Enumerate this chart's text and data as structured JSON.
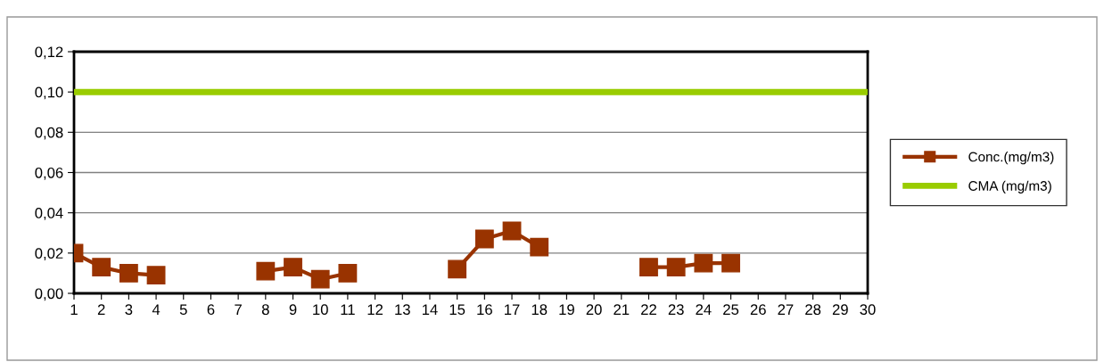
{
  "chart_data": {
    "type": "line",
    "categories": [
      "1",
      "2",
      "3",
      "4",
      "5",
      "6",
      "7",
      "8",
      "9",
      "10",
      "11",
      "12",
      "13",
      "14",
      "15",
      "16",
      "17",
      "18",
      "19",
      "20",
      "21",
      "22",
      "23",
      "24",
      "25",
      "26",
      "27",
      "28",
      "29",
      "30"
    ],
    "series": [
      {
        "name": "Conc.(mg/m3)",
        "color": "#993300",
        "marker": "square",
        "values": [
          0.02,
          0.013,
          0.01,
          0.009,
          null,
          null,
          null,
          0.011,
          0.013,
          0.007,
          0.01,
          null,
          null,
          null,
          0.012,
          0.027,
          0.031,
          0.023,
          null,
          null,
          null,
          0.013,
          0.013,
          0.015,
          0.015,
          null,
          null,
          null,
          null,
          null
        ]
      },
      {
        "name": "CMA (mg/m3)",
        "color": "#99cc00",
        "marker": "none",
        "values": [
          0.1,
          0.1,
          0.1,
          0.1,
          0.1,
          0.1,
          0.1,
          0.1,
          0.1,
          0.1,
          0.1,
          0.1,
          0.1,
          0.1,
          0.1,
          0.1,
          0.1,
          0.1,
          0.1,
          0.1,
          0.1,
          0.1,
          0.1,
          0.1,
          0.1,
          0.1,
          0.1,
          0.1,
          0.1,
          0.1
        ]
      }
    ],
    "ylim": [
      0,
      0.12
    ],
    "yticks": [
      {
        "value": 0,
        "label": "0,00"
      },
      {
        "value": 0.02,
        "label": "0,02"
      },
      {
        "value": 0.04,
        "label": "0,04"
      },
      {
        "value": 0.06,
        "label": "0,06"
      },
      {
        "value": 0.08,
        "label": "0,08"
      },
      {
        "value": 0.1,
        "label": "0,10"
      },
      {
        "value": 0.12,
        "label": "0,12"
      }
    ],
    "grid": "y",
    "legend": "right",
    "line_style": "solid"
  }
}
